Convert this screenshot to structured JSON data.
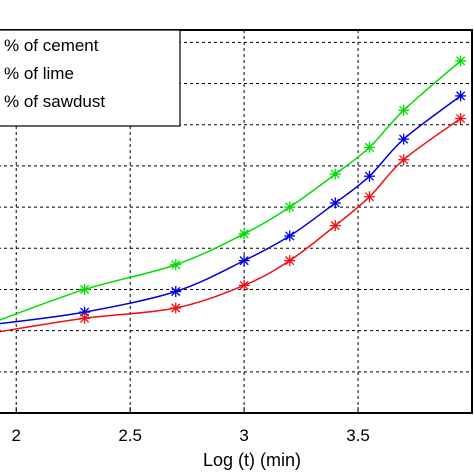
{
  "chart_data": {
    "type": "line",
    "xlabel": "Log (t) (min)",
    "ylabel": "",
    "xlim": [
      1.92,
      4.0
    ],
    "ylim": [
      0,
      9.3
    ],
    "x_ticks": [
      2,
      2.5,
      3,
      3.5
    ],
    "x_tick_labels": [
      "2",
      "2.5",
      "3",
      "3.5"
    ],
    "y_ticks": [
      1,
      2,
      3,
      4,
      5,
      6,
      7,
      8,
      9
    ],
    "grid": true,
    "grid_style": "dashed",
    "legend_position": "top-left",
    "marker": "asterisk",
    "series": [
      {
        "name": "% of cement",
        "color": "#00dd00",
        "x": [
          1.9,
          2.3,
          2.7,
          3.0,
          3.2,
          3.4,
          3.55,
          3.7,
          3.95
        ],
        "y": [
          2.2,
          3.0,
          3.6,
          4.35,
          5.0,
          5.8,
          6.45,
          7.35,
          8.55
        ]
      },
      {
        "name": "% of lime",
        "color": "#0000dd",
        "x": [
          1.9,
          2.3,
          2.7,
          3.0,
          3.2,
          3.4,
          3.55,
          3.7,
          3.95
        ],
        "y": [
          2.15,
          2.45,
          2.95,
          3.7,
          4.3,
          5.1,
          5.75,
          6.65,
          7.7
        ]
      },
      {
        "name": "% of sawdust",
        "color": "#ee1111",
        "x": [
          1.9,
          2.3,
          2.7,
          3.0,
          3.2,
          3.4,
          3.55,
          3.7,
          3.95
        ],
        "y": [
          1.95,
          2.3,
          2.55,
          3.1,
          3.7,
          4.55,
          5.25,
          6.15,
          7.15
        ]
      }
    ]
  }
}
